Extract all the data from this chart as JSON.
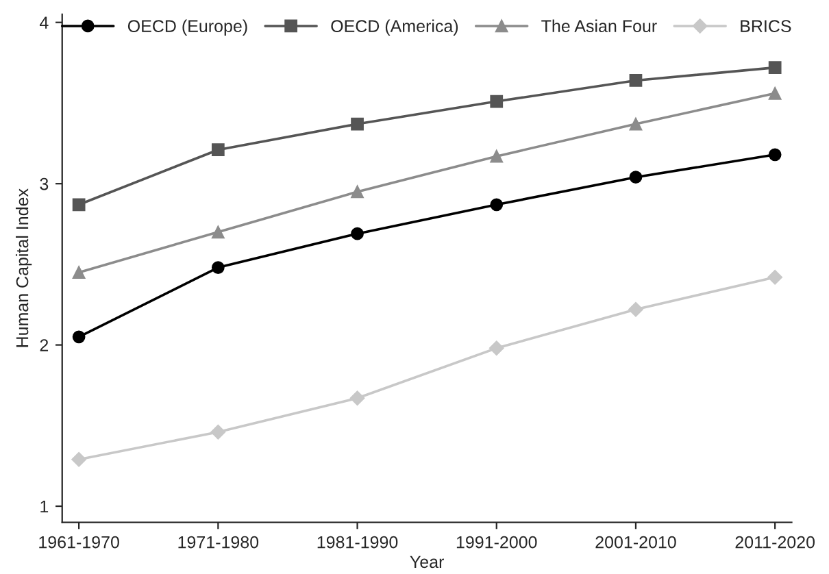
{
  "chart_data": {
    "type": "line",
    "xlabel": "Year",
    "ylabel": "Human Capital Index",
    "categories": [
      "1961-1970",
      "1971-1980",
      "1981-1990",
      "1991-2000",
      "2001-2010",
      "2011-2020"
    ],
    "series": [
      {
        "name": "OECD (Europe)",
        "color": "#000000",
        "marker": "circle",
        "values": [
          2.05,
          2.48,
          2.69,
          2.87,
          3.04,
          3.18
        ]
      },
      {
        "name": "OECD (America)",
        "color": "#555555",
        "marker": "square",
        "values": [
          2.87,
          3.21,
          3.37,
          3.51,
          3.64,
          3.72
        ]
      },
      {
        "name": "The Asian Four",
        "color": "#8c8c8c",
        "marker": "triangle",
        "values": [
          2.45,
          2.7,
          2.95,
          3.17,
          3.37,
          3.56
        ]
      },
      {
        "name": "BRICS",
        "color": "#c8c8c8",
        "marker": "diamond",
        "values": [
          1.29,
          1.46,
          1.67,
          1.98,
          2.22,
          2.42
        ]
      }
    ],
    "ylim": [
      0.9,
      4.05
    ],
    "yticks": [
      1,
      2,
      3,
      4
    ],
    "grid": false,
    "legend": "top",
    "line_style": "solid"
  }
}
